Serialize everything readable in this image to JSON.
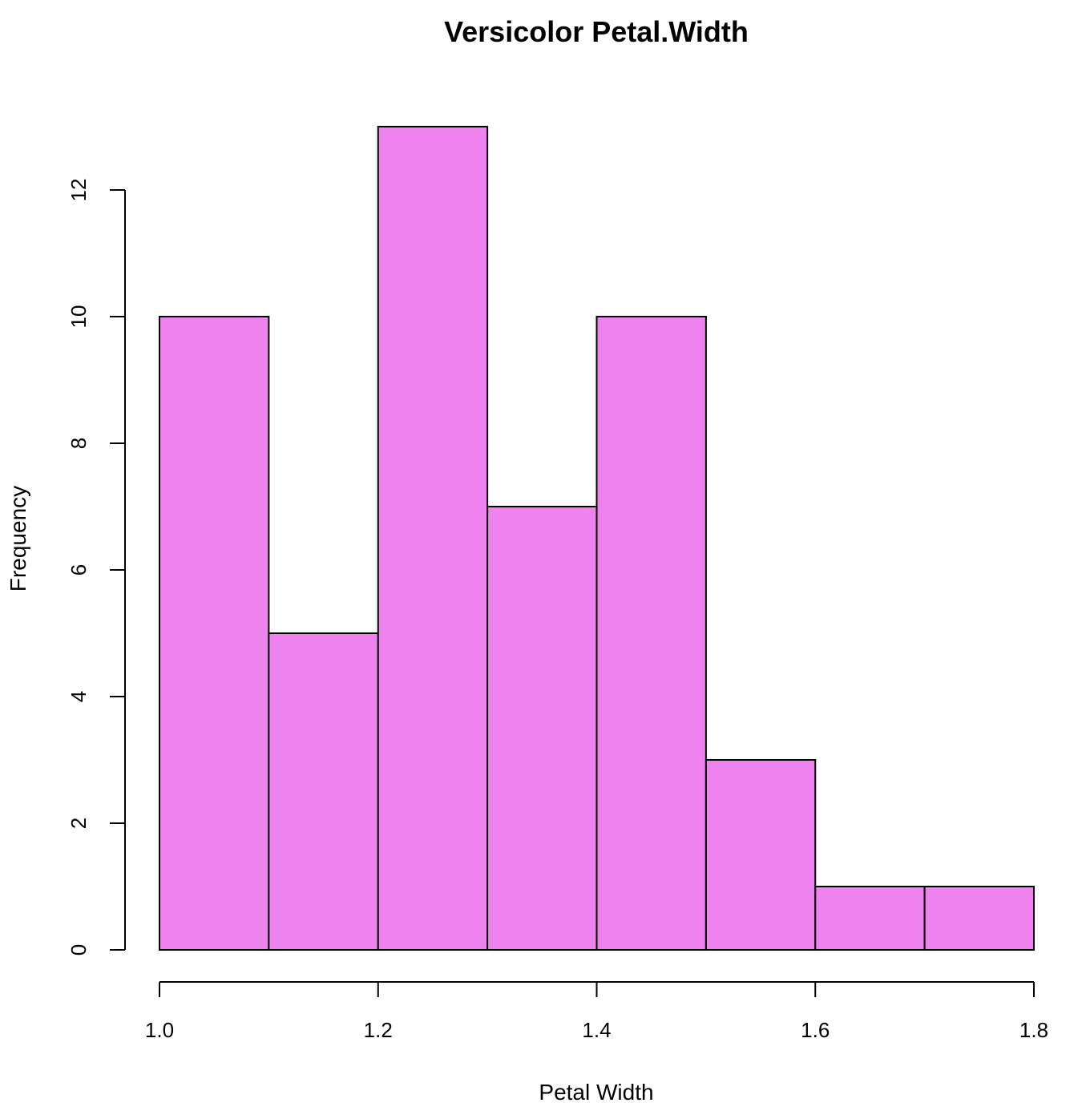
{
  "chart_data": {
    "type": "bar",
    "title": "Versicolor Petal.Width",
    "xlabel": "Petal Width",
    "ylabel": "Frequency",
    "bins": [
      {
        "start": 1.0,
        "end": 1.1,
        "count": 10
      },
      {
        "start": 1.1,
        "end": 1.2,
        "count": 5
      },
      {
        "start": 1.2,
        "end": 1.3,
        "count": 13
      },
      {
        "start": 1.3,
        "end": 1.4,
        "count": 7
      },
      {
        "start": 1.4,
        "end": 1.5,
        "count": 10
      },
      {
        "start": 1.5,
        "end": 1.6,
        "count": 3
      },
      {
        "start": 1.6,
        "end": 1.7,
        "count": 1
      },
      {
        "start": 1.7,
        "end": 1.8,
        "count": 1
      }
    ],
    "x_ticks": [
      1.0,
      1.2,
      1.4,
      1.6,
      1.8
    ],
    "x_tick_labels": [
      "1.0",
      "1.2",
      "1.4",
      "1.6",
      "1.8"
    ],
    "y_ticks": [
      0,
      2,
      4,
      6,
      8,
      10,
      12
    ],
    "y_tick_labels": [
      "0",
      "2",
      "4",
      "6",
      "8",
      "10",
      "12"
    ],
    "xlim": [
      1.0,
      1.8
    ],
    "ylim": [
      0,
      13
    ],
    "grid": false,
    "colors": {
      "bar_fill": "#EE82EE",
      "bar_stroke": "#000000"
    }
  }
}
